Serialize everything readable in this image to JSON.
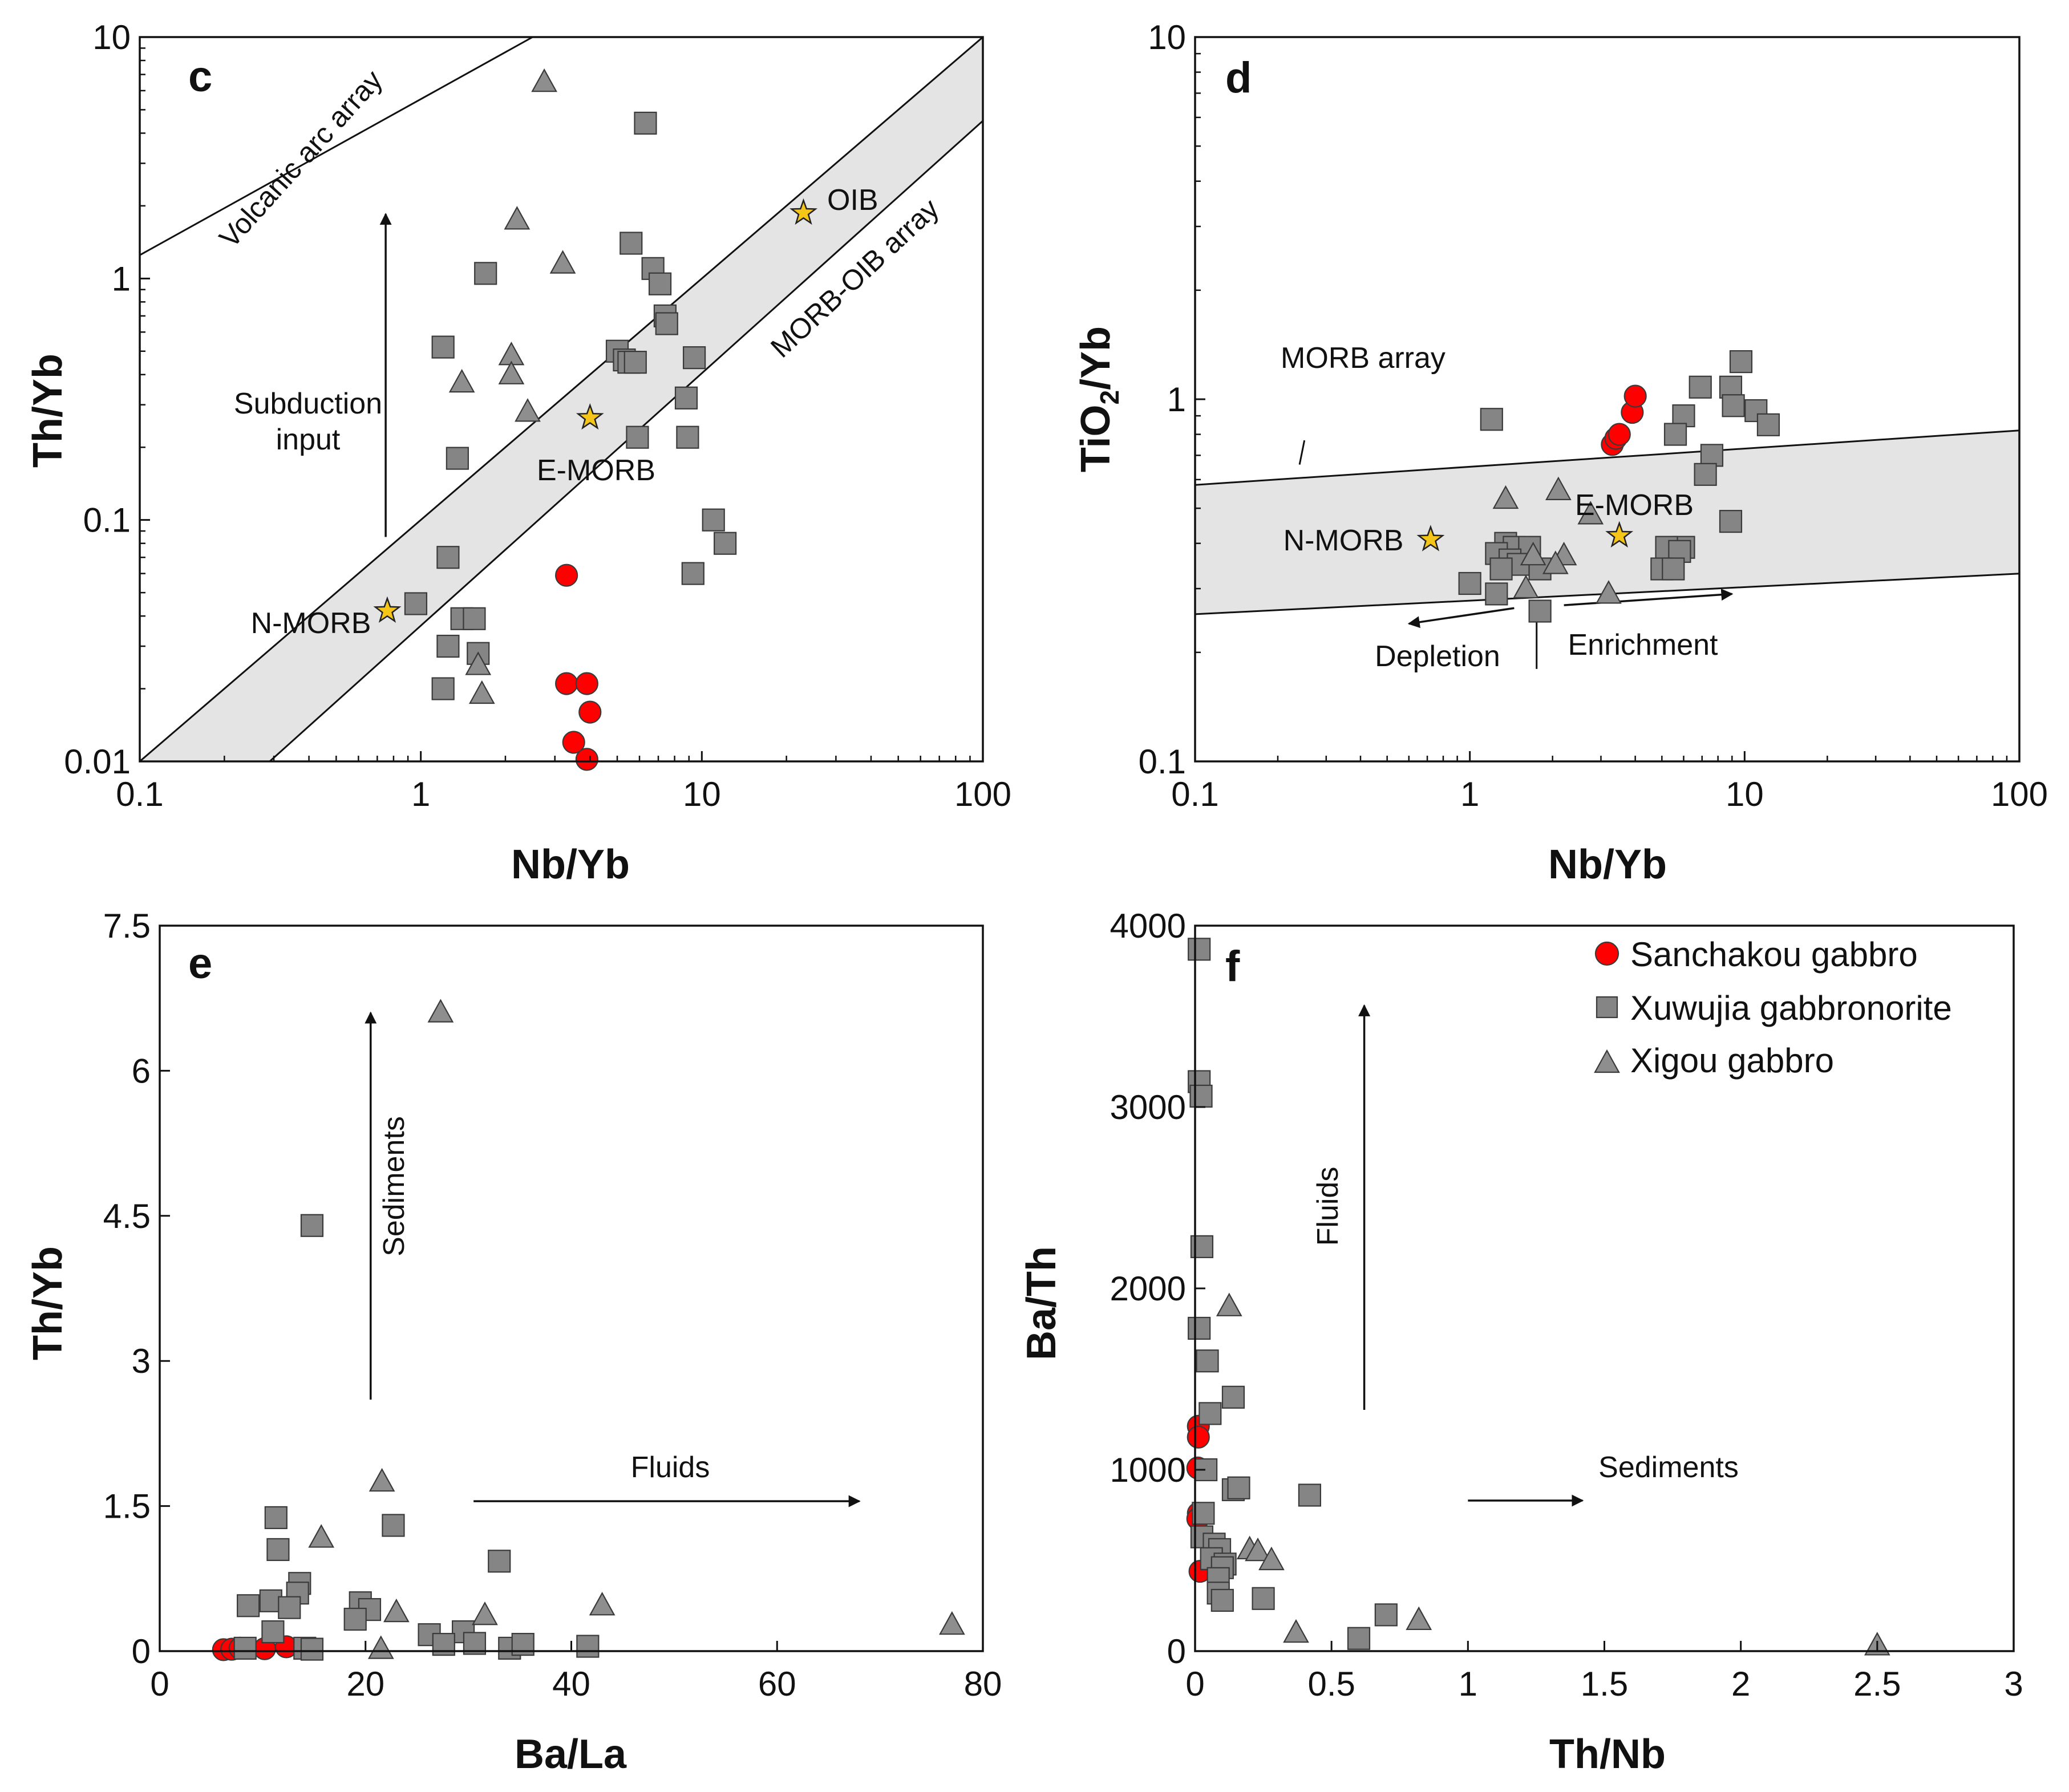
{
  "colors": {
    "sanchakou": "#ff0000",
    "squares": "#858585",
    "triangles": "#8e8e8e",
    "marker_edge": "#3a3a3a",
    "band": "#e4e4e4",
    "star": "#f5c518"
  },
  "legend": [
    {
      "label": "Sanchakou gabbro",
      "marker": "circle"
    },
    {
      "label": "Xuwujia gabbronorite",
      "marker": "square"
    },
    {
      "label": "Xigou gabbro",
      "marker": "triangle"
    }
  ],
  "chart_data": [
    {
      "panel": "c",
      "type": "scatter",
      "xscale": "log",
      "yscale": "log",
      "xlim": [
        0.1,
        100
      ],
      "ylim": [
        0.01,
        10
      ],
      "xlabel": "Nb/Yb",
      "ylabel": "Th/Yb",
      "xticks": [
        0.1,
        1,
        10,
        100
      ],
      "xtick_labels": [
        "0.1",
        "1",
        "10",
        "100"
      ],
      "yticks": [
        0.01,
        0.1,
        1,
        10
      ],
      "ytick_labels": [
        "0.01",
        "0.1",
        "1",
        "10"
      ],
      "band": {
        "lower": [
          [
            0.29,
            0.01
          ],
          [
            100,
            4.5
          ]
        ],
        "upper": [
          [
            0.1,
            0.01
          ],
          [
            100,
            10
          ]
        ]
      },
      "lines": [
        {
          "from": [
            0.1,
            1.25
          ],
          "to": [
            2.5,
            10
          ]
        }
      ],
      "arrows": [
        {
          "from": [
            0.75,
            0.085
          ],
          "to": [
            0.75,
            1.85
          ]
        }
      ],
      "stars": [
        {
          "label": "N-MORB",
          "x": 0.76,
          "y": 0.042
        },
        {
          "label": "E-MORB",
          "x": 4.0,
          "y": 0.265
        },
        {
          "label": "OIB",
          "x": 23,
          "y": 1.87
        }
      ],
      "texts": [
        "Volcanic arc array",
        "MORB-OIB array",
        "Subduction",
        "input"
      ],
      "series": [
        {
          "name": "Sanchakou gabbro",
          "marker": "circle",
          "points": [
            [
              3.3,
              0.059
            ],
            [
              3.3,
              0.021
            ],
            [
              3.9,
              0.021
            ],
            [
              4.0,
              0.016
            ],
            [
              3.5,
              0.012
            ],
            [
              3.9,
              0.0102
            ]
          ]
        },
        {
          "name": "Xuwujia gabbronorite",
          "marker": "square",
          "points": [
            [
              6.3,
              4.4
            ],
            [
              1.7,
              1.05
            ],
            [
              5.6,
              1.4
            ],
            [
              6.7,
              1.1
            ],
            [
              7.1,
              0.95
            ],
            [
              7.4,
              0.7
            ],
            [
              7.5,
              0.65
            ],
            [
              1.2,
              0.52
            ],
            [
              5.0,
              0.5
            ],
            [
              5.3,
              0.46
            ],
            [
              5.5,
              0.45
            ],
            [
              5.8,
              0.45
            ],
            [
              9.4,
              0.47
            ],
            [
              8.8,
              0.32
            ],
            [
              5.9,
              0.22
            ],
            [
              8.9,
              0.22
            ],
            [
              1.35,
              0.18
            ],
            [
              11.0,
              0.1
            ],
            [
              12.1,
              0.08
            ],
            [
              1.25,
              0.07
            ],
            [
              9.3,
              0.06
            ],
            [
              0.96,
              0.045
            ],
            [
              1.4,
              0.039
            ],
            [
              1.55,
              0.039
            ],
            [
              1.25,
              0.03
            ],
            [
              1.6,
              0.028
            ],
            [
              1.2,
              0.02
            ]
          ]
        },
        {
          "name": "Xigou gabbro",
          "marker": "triangle",
          "points": [
            [
              2.75,
              6.5
            ],
            [
              2.2,
              1.75
            ],
            [
              3.2,
              1.15
            ],
            [
              2.1,
              0.48
            ],
            [
              2.1,
              0.4
            ],
            [
              1.4,
              0.37
            ],
            [
              2.4,
              0.28
            ],
            [
              1.6,
              0.025
            ],
            [
              1.65,
              0.019
            ]
          ]
        }
      ]
    },
    {
      "panel": "d",
      "type": "scatter",
      "xscale": "log",
      "yscale": "log",
      "xlim": [
        0.1,
        100
      ],
      "ylim": [
        0.1,
        10
      ],
      "xlabel": "Nb/Yb",
      "ylabel_main": "TiO",
      "ylabel_sub": "2",
      "ylabel_tail": "/Yb",
      "xticks": [
        0.1,
        1,
        10,
        100
      ],
      "xtick_labels": [
        "0.1",
        "1",
        "10",
        "100"
      ],
      "yticks": [
        0.1,
        1,
        10
      ],
      "ytick_labels": [
        "0.1",
        "1",
        "10"
      ],
      "band": {
        "lower": [
          [
            0.1,
            0.255
          ],
          [
            100,
            0.33
          ]
        ],
        "upper": [
          [
            0.1,
            0.58
          ],
          [
            100,
            0.82
          ]
        ]
      },
      "leader": {
        "from": [
          0.24,
          0.66
        ],
        "to": [
          0.25,
          0.77
        ]
      },
      "arrows": [
        {
          "from": [
            1.45,
            0.265
          ],
          "to": [
            0.6,
            0.24
          ]
        },
        {
          "from": [
            2.2,
            0.27
          ],
          "to": [
            9.0,
            0.29
          ]
        }
      ],
      "separator": {
        "from": [
          1.75,
          0.18
        ],
        "to": [
          1.75,
          0.26
        ]
      },
      "stars": [
        {
          "label": "N-MORB",
          "x": 0.72,
          "y": 0.41
        },
        {
          "label": "E-MORB",
          "x": 3.5,
          "y": 0.42
        }
      ],
      "texts": [
        "MORB array",
        "Depletion",
        "Enrichment"
      ],
      "series": [
        {
          "name": "Sanchakou gabbro",
          "marker": "circle",
          "points": [
            [
              3.3,
              0.75
            ],
            [
              3.4,
              0.78
            ],
            [
              3.5,
              0.8
            ],
            [
              3.9,
              0.92
            ],
            [
              4.0,
              1.02
            ]
          ]
        },
        {
          "name": "Xuwujia gabbronorite",
          "marker": "square",
          "points": [
            [
              9.7,
              1.27
            ],
            [
              6.9,
              1.08
            ],
            [
              8.9,
              1.08
            ],
            [
              9.1,
              0.96
            ],
            [
              11.0,
              0.93
            ],
            [
              12.2,
              0.85
            ],
            [
              6.0,
              0.9
            ],
            [
              5.6,
              0.8
            ],
            [
              7.6,
              0.7
            ],
            [
              7.2,
              0.62
            ],
            [
              1.2,
              0.88
            ],
            [
              6.0,
              0.39
            ],
            [
              5.2,
              0.39
            ],
            [
              5.8,
              0.38
            ],
            [
              8.9,
              0.46
            ],
            [
              5.0,
              0.34
            ],
            [
              5.5,
              0.34
            ],
            [
              1.35,
              0.4
            ],
            [
              1.45,
              0.39
            ],
            [
              1.65,
              0.39
            ],
            [
              1.25,
              0.375
            ],
            [
              1.4,
              0.36
            ],
            [
              1.5,
              0.35
            ],
            [
              1.3,
              0.34
            ],
            [
              1.8,
              0.34
            ],
            [
              1.0,
              0.31
            ],
            [
              1.25,
              0.29
            ],
            [
              1.8,
              0.26
            ]
          ]
        },
        {
          "name": "Xigou gabbro",
          "marker": "triangle",
          "points": [
            [
              1.35,
              0.53
            ],
            [
              2.1,
              0.56
            ],
            [
              2.75,
              0.48
            ],
            [
              2.2,
              0.37
            ],
            [
              2.05,
              0.35
            ],
            [
              1.6,
              0.3
            ],
            [
              3.2,
              0.29
            ],
            [
              1.7,
              0.37
            ]
          ]
        }
      ]
    },
    {
      "panel": "e",
      "type": "scatter",
      "xscale": "linear",
      "yscale": "linear",
      "xlim": [
        0,
        80
      ],
      "ylim": [
        0,
        7.5
      ],
      "xlabel": "Ba/La",
      "ylabel": "Th/Yb",
      "xticks": [
        0,
        20,
        40,
        60,
        80
      ],
      "xtick_labels": [
        "0",
        "20",
        "40",
        "60",
        "80"
      ],
      "yticks": [
        0,
        1.5,
        3,
        4.5,
        6,
        7.5
      ],
      "ytick_labels": [
        "0",
        "1.5",
        "3",
        "4.5",
        "6",
        "7.5"
      ],
      "arrows": [
        {
          "from": [
            20.5,
            2.6
          ],
          "to": [
            20.5,
            6.6
          ]
        },
        {
          "from": [
            30.5,
            1.55
          ],
          "to": [
            68,
            1.55
          ]
        }
      ],
      "texts": [
        "Sediments",
        "Fluids"
      ],
      "series": [
        {
          "name": "Sanchakou gabbro",
          "marker": "circle",
          "points": [
            [
              6.2,
              0.015
            ],
            [
              7.0,
              0.02
            ],
            [
              7.8,
              0.03
            ],
            [
              10.2,
              0.025
            ],
            [
              12.3,
              0.045
            ]
          ]
        },
        {
          "name": "Xuwujia gabbronorite",
          "marker": "square",
          "points": [
            [
              14.8,
              4.4
            ],
            [
              11.3,
              1.38
            ],
            [
              11.5,
              1.05
            ],
            [
              22.7,
              1.3
            ],
            [
              33.0,
              0.93
            ],
            [
              13.6,
              0.7
            ],
            [
              13.4,
              0.6
            ],
            [
              8.6,
              0.47
            ],
            [
              10.8,
              0.52
            ],
            [
              12.6,
              0.45
            ],
            [
              19.5,
              0.5
            ],
            [
              20.4,
              0.43
            ],
            [
              19.0,
              0.33
            ],
            [
              11.0,
              0.2
            ],
            [
              26.2,
              0.17
            ],
            [
              29.5,
              0.2
            ],
            [
              27.6,
              0.07
            ],
            [
              30.6,
              0.08
            ],
            [
              34.0,
              0.03
            ],
            [
              35.3,
              0.07
            ],
            [
              41.6,
              0.05
            ],
            [
              14.1,
              0.03
            ],
            [
              14.8,
              0.02
            ],
            [
              8.3,
              0.03
            ]
          ]
        },
        {
          "name": "Xigou gabbro",
          "marker": "triangle",
          "points": [
            [
              27.3,
              6.6
            ],
            [
              21.6,
              1.75
            ],
            [
              15.7,
              1.17
            ],
            [
              23.0,
              0.4
            ],
            [
              31.6,
              0.37
            ],
            [
              43.0,
              0.47
            ],
            [
              77.0,
              0.27
            ],
            [
              21.5,
              0.02
            ]
          ]
        }
      ]
    },
    {
      "panel": "f",
      "type": "scatter",
      "xscale": "linear",
      "yscale": "linear",
      "xlim": [
        0,
        3
      ],
      "ylim": [
        0,
        4000
      ],
      "xlabel": "Th/Nb",
      "ylabel": "Ba/Th",
      "xticks": [
        0,
        0.5,
        1,
        1.5,
        2,
        2.5,
        3
      ],
      "xtick_labels": [
        "0",
        "0.5",
        "1",
        "1.5",
        "2",
        "2.5",
        "3"
      ],
      "yticks": [
        0,
        1000,
        2000,
        3000,
        4000
      ],
      "ytick_labels": [
        "0",
        "1000",
        "2000",
        "3000",
        "4000"
      ],
      "arrows": [
        {
          "from": [
            0.62,
            1330
          ],
          "to": [
            0.62,
            3560
          ]
        },
        {
          "from": [
            1.0,
            830
          ],
          "to": [
            1.42,
            830
          ]
        }
      ],
      "texts": [
        "Fluids",
        "Sediments"
      ],
      "series": [
        {
          "name": "Sanchakou gabbro",
          "marker": "circle",
          "points": [
            [
              0.012,
              1240
            ],
            [
              0.012,
              1180
            ],
            [
              0.01,
              1010
            ],
            [
              0.012,
              760
            ],
            [
              0.01,
              730
            ],
            [
              0.018,
              440
            ]
          ]
        },
        {
          "name": "Xuwujia gabbronorite",
          "marker": "square",
          "points": [
            [
              0.015,
              3870
            ],
            [
              0.015,
              3140
            ],
            [
              0.022,
              3060
            ],
            [
              0.025,
              2230
            ],
            [
              0.015,
              1780
            ],
            [
              0.045,
              1600
            ],
            [
              0.055,
              1310
            ],
            [
              0.14,
              1400
            ],
            [
              0.04,
              1000
            ],
            [
              0.14,
              890
            ],
            [
              0.16,
              900
            ],
            [
              0.42,
              860
            ],
            [
              0.03,
              760
            ],
            [
              0.025,
              630
            ],
            [
              0.07,
              590
            ],
            [
              0.09,
              560
            ],
            [
              0.06,
              510
            ],
            [
              0.11,
              480
            ],
            [
              0.1,
              460
            ],
            [
              0.085,
              400
            ],
            [
              0.085,
              320
            ],
            [
              0.1,
              280
            ],
            [
              0.25,
              290
            ],
            [
              0.7,
              200
            ],
            [
              0.6,
              70
            ]
          ]
        },
        {
          "name": "Xigou gabbro",
          "marker": "triangle",
          "points": [
            [
              0.125,
              1900
            ],
            [
              0.2,
              560
            ],
            [
              0.23,
              550
            ],
            [
              0.28,
              500
            ],
            [
              0.37,
              100
            ],
            [
              0.82,
              170
            ],
            [
              2.5,
              30
            ]
          ]
        }
      ]
    }
  ]
}
